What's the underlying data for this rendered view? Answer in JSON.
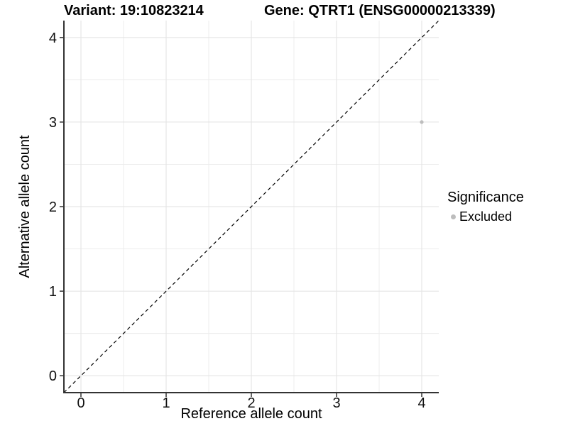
{
  "chart_data": {
    "type": "scatter",
    "title_left": "Variant: 19:10823214",
    "title_right": "Gene: QTRT1 (ENSG00000213339)",
    "xlabel": "Reference allele count",
    "ylabel": "Alternative allele count",
    "xlim": [
      -0.2,
      4.2
    ],
    "ylim": [
      -0.2,
      4.2
    ],
    "xticks": [
      0,
      1,
      2,
      3,
      4
    ],
    "yticks": [
      0,
      1,
      2,
      3,
      4
    ],
    "minor_grid_step": 0.5,
    "grid": "major and minor gridlines on white panel",
    "reference_line": {
      "type": "identity y=x",
      "style": "dashed",
      "color": "#000000"
    },
    "series": [
      {
        "name": "Excluded",
        "color": "#bdbdbd",
        "points": [
          {
            "x": 4,
            "y": 3
          }
        ]
      }
    ],
    "legend": {
      "title": "Significance",
      "position": "right",
      "entries": [
        {
          "label": "Excluded",
          "color": "#bdbdbd",
          "marker": "circle"
        }
      ]
    }
  },
  "colors": {
    "background": "#ffffff",
    "grid_major": "#e2e2e2",
    "grid_minor": "#ececec",
    "axis_line": "#333333",
    "tick_text": "#111111",
    "title_text": "#000000",
    "point": "#bdbdbd",
    "reference_line": "#000000"
  }
}
